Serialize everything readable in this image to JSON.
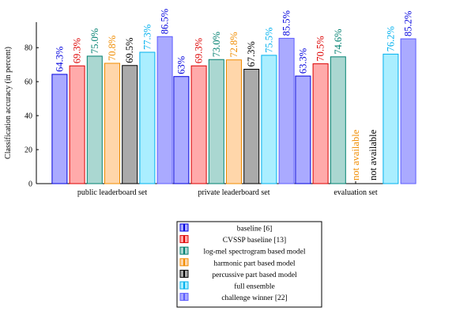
{
  "chart_data": {
    "type": "bar",
    "ylabel": "Classification accuracy (in percent)",
    "xlabel": "",
    "ylim": [
      0,
      95
    ],
    "yticks": [
      0,
      20,
      40,
      60,
      80
    ],
    "grid": false,
    "legend_position": "bottom-center",
    "categories": [
      "public leaderboard set",
      "private leaderboard set",
      "evaluation set"
    ],
    "series": [
      {
        "name": "baseline [6]",
        "fill": "#aaaaff",
        "stroke": "#0000dd",
        "label_color": "#0000dd",
        "values": [
          64.3,
          63,
          63.3
        ],
        "labels": [
          "64.3%",
          "63%",
          "63.3%"
        ]
      },
      {
        "name": "CVSSP baseline [13]",
        "fill": "#ffaaaa",
        "stroke": "#dd0000",
        "label_color": "#dd0000",
        "values": [
          69.3,
          69.3,
          70.5
        ],
        "labels": [
          "69.3%",
          "69.3%",
          "70.5%"
        ]
      },
      {
        "name": "log-mel spectrogram based model",
        "fill": "#aad7d1",
        "stroke": "#008070",
        "label_color": "#008070",
        "values": [
          75.0,
          73.0,
          74.6
        ],
        "labels": [
          "75.0%",
          "73.0%",
          "74.6%"
        ]
      },
      {
        "name": "harmonic part based model",
        "fill": "#ffd6aa",
        "stroke": "#f08c00",
        "label_color": "#f08c00",
        "values": [
          70.8,
          72.8,
          null
        ],
        "labels": [
          "70.8%",
          "72.8%",
          "not available"
        ]
      },
      {
        "name": "percussive part based model",
        "fill": "#aaaaaa",
        "stroke": "#000000",
        "label_color": "#000000",
        "values": [
          69.5,
          67.3,
          null
        ],
        "labels": [
          "69.5%",
          "67.3%",
          "not available"
        ]
      },
      {
        "name": "full ensemble",
        "fill": "#aaeeff",
        "stroke": "#00b0ee",
        "label_color": "#00b0ee",
        "values": [
          77.3,
          75.5,
          76.2
        ],
        "labels": [
          "77.3%",
          "75.5%",
          "76.2%"
        ]
      },
      {
        "name": "challenge winner [22]",
        "fill": "#aaaaff",
        "stroke": "#5c5cff",
        "label_color": "#0000dd",
        "values": [
          86.5,
          85.5,
          85.2
        ],
        "labels": [
          "86.5%",
          "85.5%",
          "85.2%"
        ]
      }
    ]
  }
}
